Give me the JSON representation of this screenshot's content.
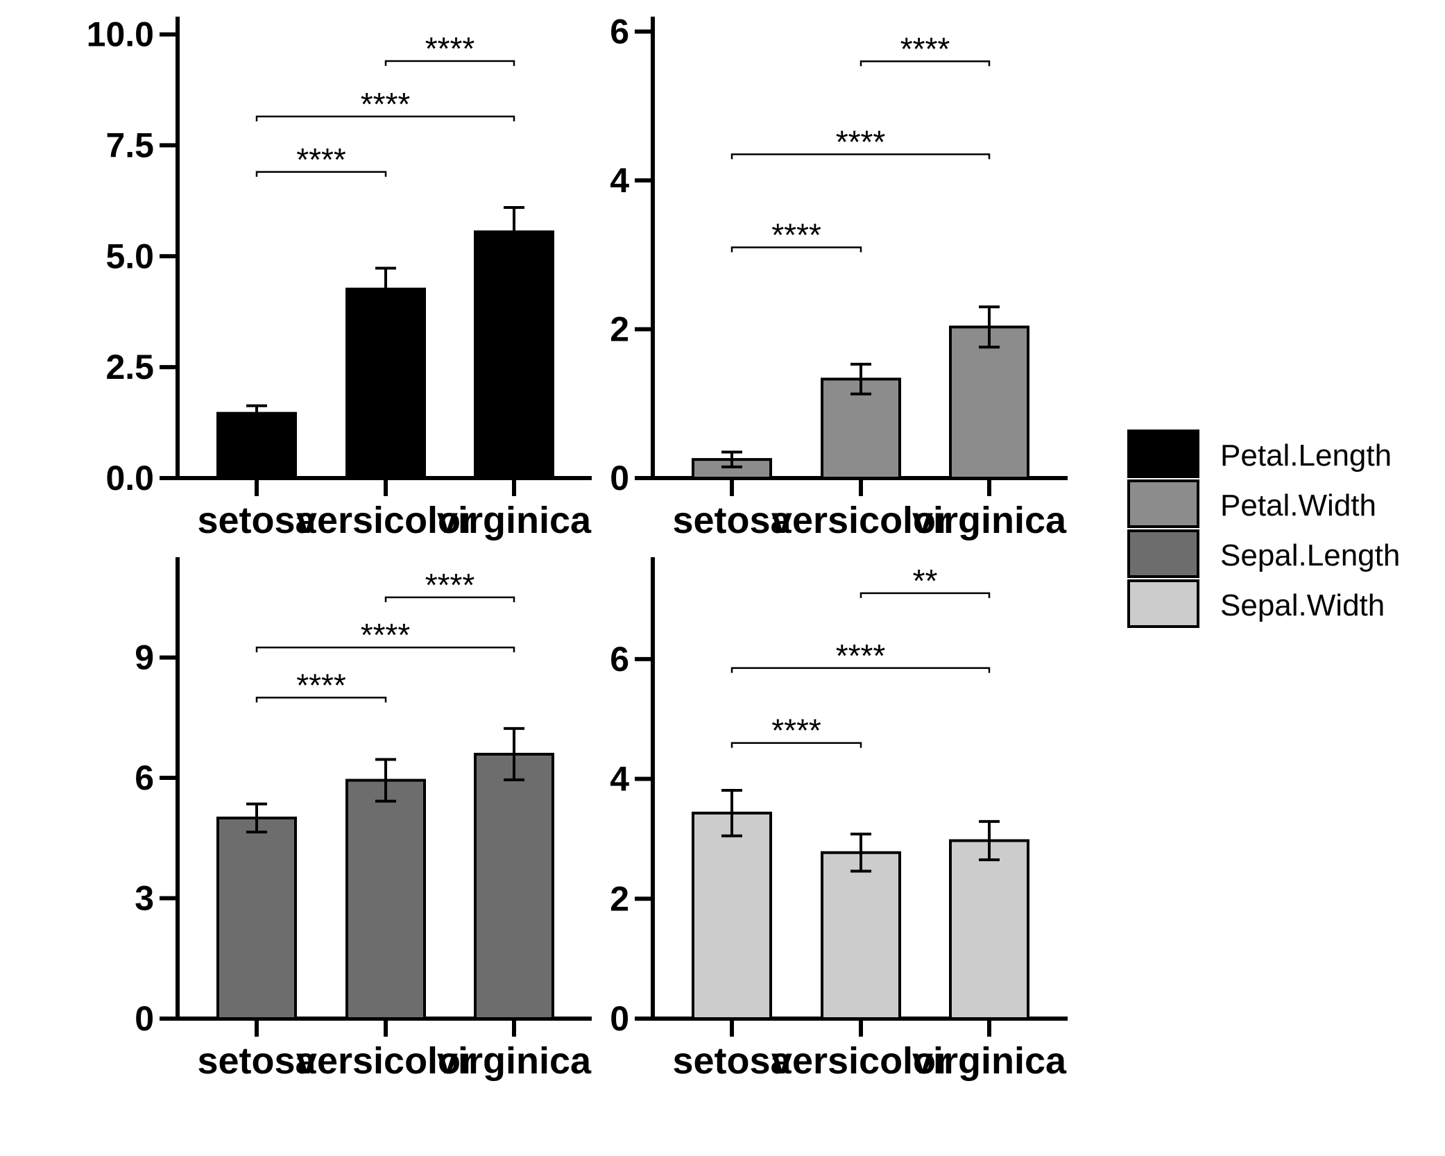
{
  "chart_data": [
    {
      "type": "bar",
      "categories": [
        "setosa",
        "versicolor",
        "virginica"
      ],
      "series": [
        {
          "name": "Petal.Length",
          "values": [
            1.46,
            4.26,
            5.55
          ],
          "error": [
            0.17,
            0.47,
            0.55
          ]
        }
      ],
      "color": "#000000",
      "ylim": [
        0,
        10.4
      ],
      "yticks": [
        0,
        2.5,
        5,
        7.5,
        10
      ],
      "ytick_labels": [
        "0.0",
        "2.5",
        "5.0",
        "7.5",
        "10.0"
      ],
      "significance": [
        {
          "from": 1,
          "to": 2,
          "y": 9.4,
          "label": "****"
        },
        {
          "from": 0,
          "to": 2,
          "y": 8.15,
          "label": "****"
        },
        {
          "from": 0,
          "to": 1,
          "y": 6.9,
          "label": "****"
        }
      ]
    },
    {
      "type": "bar",
      "categories": [
        "setosa",
        "versicolor",
        "virginica"
      ],
      "series": [
        {
          "name": "Petal.Width",
          "values": [
            0.25,
            1.33,
            2.03
          ],
          "error": [
            0.1,
            0.2,
            0.27
          ]
        }
      ],
      "color": "#8c8c8c",
      "ylim": [
        0,
        6.2
      ],
      "yticks": [
        0,
        2,
        4,
        6
      ],
      "ytick_labels": [
        "0",
        "2",
        "4",
        "6"
      ],
      "significance": [
        {
          "from": 1,
          "to": 2,
          "y": 5.6,
          "label": "****"
        },
        {
          "from": 0,
          "to": 2,
          "y": 4.35,
          "label": "****"
        },
        {
          "from": 0,
          "to": 1,
          "y": 3.1,
          "label": "****"
        }
      ]
    },
    {
      "type": "bar",
      "categories": [
        "setosa",
        "versicolor",
        "virginica"
      ],
      "series": [
        {
          "name": "Sepal.Length",
          "values": [
            5.0,
            5.94,
            6.59
          ],
          "error": [
            0.35,
            0.52,
            0.64
          ]
        }
      ],
      "color": "#6d6d6d",
      "ylim": [
        0,
        11.5
      ],
      "yticks": [
        0,
        3,
        6,
        9
      ],
      "ytick_labels": [
        "0",
        "3",
        "6",
        "9"
      ],
      "significance": [
        {
          "from": 1,
          "to": 2,
          "y": 10.5,
          "label": "****"
        },
        {
          "from": 0,
          "to": 2,
          "y": 9.25,
          "label": "****"
        },
        {
          "from": 0,
          "to": 1,
          "y": 8.0,
          "label": "****"
        }
      ]
    },
    {
      "type": "bar",
      "categories": [
        "setosa",
        "versicolor",
        "virginica"
      ],
      "series": [
        {
          "name": "Sepal.Width",
          "values": [
            3.43,
            2.77,
            2.97
          ],
          "error": [
            0.38,
            0.31,
            0.32
          ]
        }
      ],
      "color": "#cccccc",
      "ylim": [
        0,
        7.7
      ],
      "yticks": [
        0,
        2,
        4,
        6
      ],
      "ytick_labels": [
        "0",
        "2",
        "4",
        "6"
      ],
      "significance": [
        {
          "from": 1,
          "to": 2,
          "y": 7.1,
          "label": "**"
        },
        {
          "from": 0,
          "to": 2,
          "y": 5.85,
          "label": "****"
        },
        {
          "from": 0,
          "to": 1,
          "y": 4.6,
          "label": "****"
        }
      ]
    }
  ],
  "legend": {
    "position": "right",
    "items": [
      {
        "label": "Petal.Length",
        "color": "#000000"
      },
      {
        "label": "Petal.Width",
        "color": "#8c8c8c"
      },
      {
        "label": "Sepal.Length",
        "color": "#6d6d6d"
      },
      {
        "label": "Sepal.Width",
        "color": "#cccccc"
      }
    ]
  }
}
